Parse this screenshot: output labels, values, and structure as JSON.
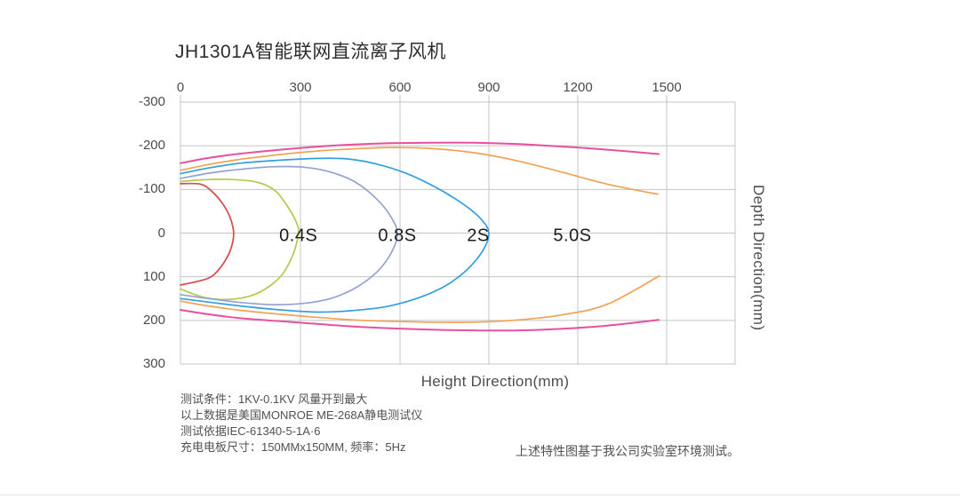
{
  "title": "JH1301A智能联网直流离子风机",
  "chart_data": {
    "type": "line",
    "title": "JH1301A智能联网直流离子风机",
    "xlabel": "Height Direction(mm)",
    "ylabel": "Depth Direction(mm)",
    "x_ticks": [
      "0",
      "300",
      "600",
      "900",
      "1200",
      "1500"
    ],
    "y_ticks": [
      "-300",
      "-200",
      "-100",
      "0",
      "100",
      "200",
      "300"
    ],
    "x_tick_values": [
      0,
      300,
      600,
      900,
      1200,
      1500
    ],
    "y_tick_values": [
      -300,
      -200,
      -100,
      0,
      100,
      200,
      300
    ],
    "xlim": [
      0,
      1730
    ],
    "ylim": [
      -300,
      300
    ],
    "grid": true,
    "legend": "none",
    "contour_labels": [
      {
        "text": "0.4S",
        "x": 295,
        "y": 8
      },
      {
        "text": "0.8S",
        "x": 592,
        "y": 8
      },
      {
        "text": "2S",
        "x": 864,
        "y": 8
      },
      {
        "text": "5.0S",
        "x": 1182,
        "y": 8
      }
    ],
    "series": [
      {
        "name": "inner-red-contour",
        "color": "#d9494b",
        "branches": [
          [
            [
              0,
              -113
            ],
            [
              50,
              -112
            ],
            [
              78,
              -96
            ],
            [
              105,
              -68
            ],
            [
              124,
              -36
            ],
            [
              133,
              0
            ],
            [
              126,
              36
            ],
            [
              107,
              70
            ],
            [
              80,
              98
            ],
            [
              50,
              109
            ],
            [
              0,
              119
            ]
          ]
        ]
      },
      {
        "name": "0.4S-contour",
        "color": "#b2cb4c",
        "branches": [
          [
            [
              0,
              -118
            ],
            [
              55,
              -122
            ],
            [
              120,
              -123
            ],
            [
              190,
              -117
            ],
            [
              237,
              -97
            ],
            [
              270,
              -58
            ],
            [
              290,
              -24
            ],
            [
              295,
              0
            ],
            [
              283,
              45
            ],
            [
              257,
              92
            ],
            [
              222,
              122
            ],
            [
              178,
              143
            ],
            [
              120,
              152
            ],
            [
              58,
              147
            ],
            [
              0,
              128
            ]
          ]
        ]
      },
      {
        "name": "0.8S-contour",
        "color": "#93a2d2",
        "branches": [
          [
            [
              0,
              -125
            ],
            [
              70,
              -137
            ],
            [
              150,
              -146
            ],
            [
              230,
              -152
            ],
            [
              310,
              -151
            ],
            [
              390,
              -140
            ],
            [
              465,
              -117
            ],
            [
              530,
              -78
            ],
            [
              572,
              -38
            ],
            [
              592,
              0
            ],
            [
              576,
              42
            ],
            [
              532,
              88
            ],
            [
              465,
              126
            ],
            [
              390,
              150
            ],
            [
              310,
              161
            ],
            [
              230,
              164
            ],
            [
              150,
              159
            ],
            [
              70,
              150
            ],
            [
              0,
              141
            ]
          ]
        ]
      },
      {
        "name": "2S-contour",
        "color": "#339fde",
        "branches": [
          [
            [
              0,
              -136
            ],
            [
              70,
              -149
            ],
            [
              150,
              -160
            ],
            [
              250,
              -167
            ],
            [
              350,
              -171
            ],
            [
              440,
              -170
            ],
            [
              530,
              -158
            ],
            [
              620,
              -137
            ],
            [
              720,
              -105
            ],
            [
              810,
              -68
            ],
            [
              872,
              -33
            ],
            [
              900,
              0
            ],
            [
              878,
              42
            ],
            [
              820,
              88
            ],
            [
              745,
              124
            ],
            [
              655,
              150
            ],
            [
              555,
              169
            ],
            [
              450,
              178
            ],
            [
              350,
              181
            ],
            [
              250,
              176
            ],
            [
              150,
              167
            ],
            [
              70,
              158
            ],
            [
              0,
              150
            ]
          ]
        ]
      },
      {
        "name": "5.0S-contour",
        "color": "#f2a254",
        "branches": [
          [
            [
              0,
              -144
            ],
            [
              70,
              -157
            ],
            [
              150,
              -169
            ],
            [
              250,
              -180
            ],
            [
              350,
              -188
            ],
            [
              460,
              -193
            ],
            [
              570,
              -196
            ],
            [
              700,
              -194
            ],
            [
              850,
              -184
            ],
            [
              1000,
              -165
            ],
            [
              1150,
              -139
            ],
            [
              1300,
              -112
            ],
            [
              1470,
              -89
            ]
          ],
          [
            [
              0,
              156
            ],
            [
              70,
              167
            ],
            [
              150,
              177
            ],
            [
              250,
              186
            ],
            [
              350,
              193
            ],
            [
              460,
              199
            ],
            [
              570,
              202
            ],
            [
              700,
              204
            ],
            [
              850,
              204
            ],
            [
              1000,
              199
            ],
            [
              1150,
              187
            ],
            [
              1300,
              163
            ],
            [
              1475,
              98
            ]
          ]
        ]
      },
      {
        "name": "outer-pink-contour",
        "color": "#e6519f",
        "branches": [
          [
            [
              0,
              -160
            ],
            [
              70,
              -172
            ],
            [
              150,
              -182
            ],
            [
              250,
              -191
            ],
            [
              350,
              -198
            ],
            [
              460,
              -203
            ],
            [
              570,
              -206
            ],
            [
              700,
              -207
            ],
            [
              850,
              -207
            ],
            [
              1000,
              -204
            ],
            [
              1150,
              -198
            ],
            [
              1300,
              -191
            ],
            [
              1473,
              -181
            ]
          ],
          [
            [
              0,
              176
            ],
            [
              70,
              186
            ],
            [
              150,
              195
            ],
            [
              250,
              202
            ],
            [
              350,
              208
            ],
            [
              460,
              214
            ],
            [
              570,
              218
            ],
            [
              700,
              221
            ],
            [
              850,
              223
            ],
            [
              1000,
              223
            ],
            [
              1150,
              219
            ],
            [
              1300,
              212
            ],
            [
              1473,
              199
            ]
          ]
        ]
      }
    ]
  },
  "footnotes": [
    "测试条件：1KV-0.1KV 风量开到最大",
    "以上数据是美国MONROE ME-268A静电测试仪",
    "测试依据IEC-61340-5-1A·6",
    "充电电板尺寸：150MMx150MM, 频率：5Hz"
  ],
  "lab_note": "上述特性图基于我公司实验室环境测试。"
}
